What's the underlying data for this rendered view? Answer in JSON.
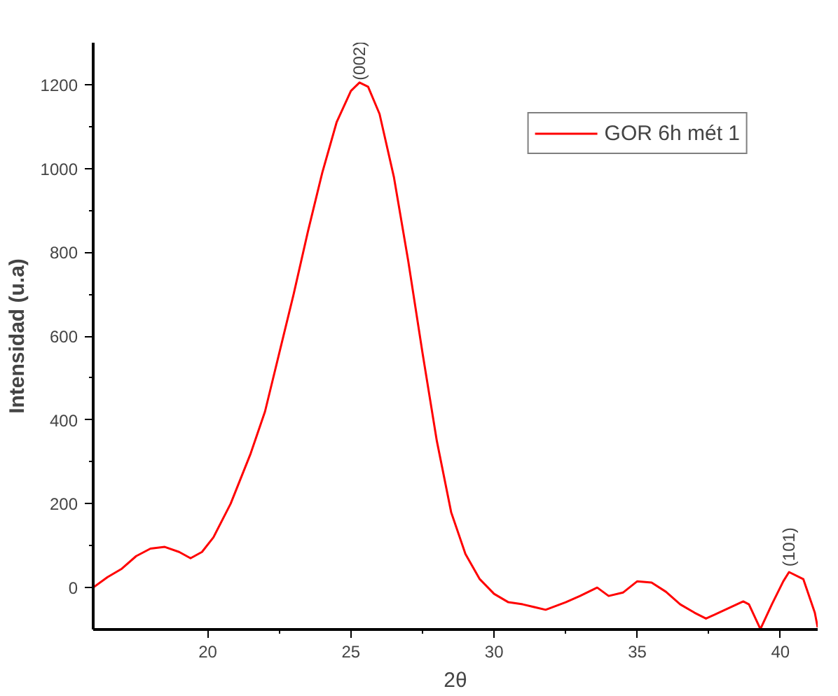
{
  "chart_data": {
    "type": "line",
    "xlabel": "2θ",
    "ylabel": "Intensidad (u.a)",
    "x": [
      16,
      16.5,
      17,
      17.5,
      18,
      18.5,
      19,
      19.4,
      19.8,
      20.2,
      20.8,
      21.5,
      22,
      22.5,
      23,
      23.5,
      24,
      24.5,
      25,
      25.3,
      25.6,
      26,
      26.5,
      27,
      27.5,
      28,
      28.5,
      29,
      29.5,
      30,
      30.5,
      31,
      31.8,
      32.5,
      33,
      33.6,
      34,
      34.5,
      35,
      35.5,
      36,
      36.5,
      37,
      37.4,
      38,
      38.7,
      38.9,
      39.3,
      39.7,
      40.1,
      40.3,
      40.8,
      41.2,
      41.3
    ],
    "series": [
      {
        "name": "GOR 6h mét 1",
        "color": "#ff0000",
        "values": [
          0,
          25,
          45,
          75,
          93,
          97,
          85,
          70,
          85,
          120,
          200,
          320,
          420,
          560,
          700,
          850,
          990,
          1110,
          1185,
          1205,
          1195,
          1130,
          980,
          780,
          560,
          350,
          180,
          80,
          20,
          -15,
          -35,
          -40,
          -53,
          -35,
          -20,
          0,
          -20,
          -12,
          15,
          12,
          -10,
          -40,
          -60,
          -74,
          -55,
          -33,
          -40,
          -99,
          -40,
          15,
          37,
          20,
          -60,
          -95
        ]
      }
    ],
    "xlim": [
      16,
      41.3
    ],
    "ylim": [
      -100,
      1300
    ],
    "xticks": [
      20,
      25,
      30,
      35,
      40
    ],
    "yticks": [
      0,
      200,
      400,
      600,
      800,
      1000,
      1200
    ],
    "annotations": [
      {
        "text": "(002)",
        "x": 25.3,
        "y": 1210
      },
      {
        "text": "(101)",
        "x": 40.3,
        "y": 50
      }
    ],
    "legend": "top right",
    "grid": false
  }
}
